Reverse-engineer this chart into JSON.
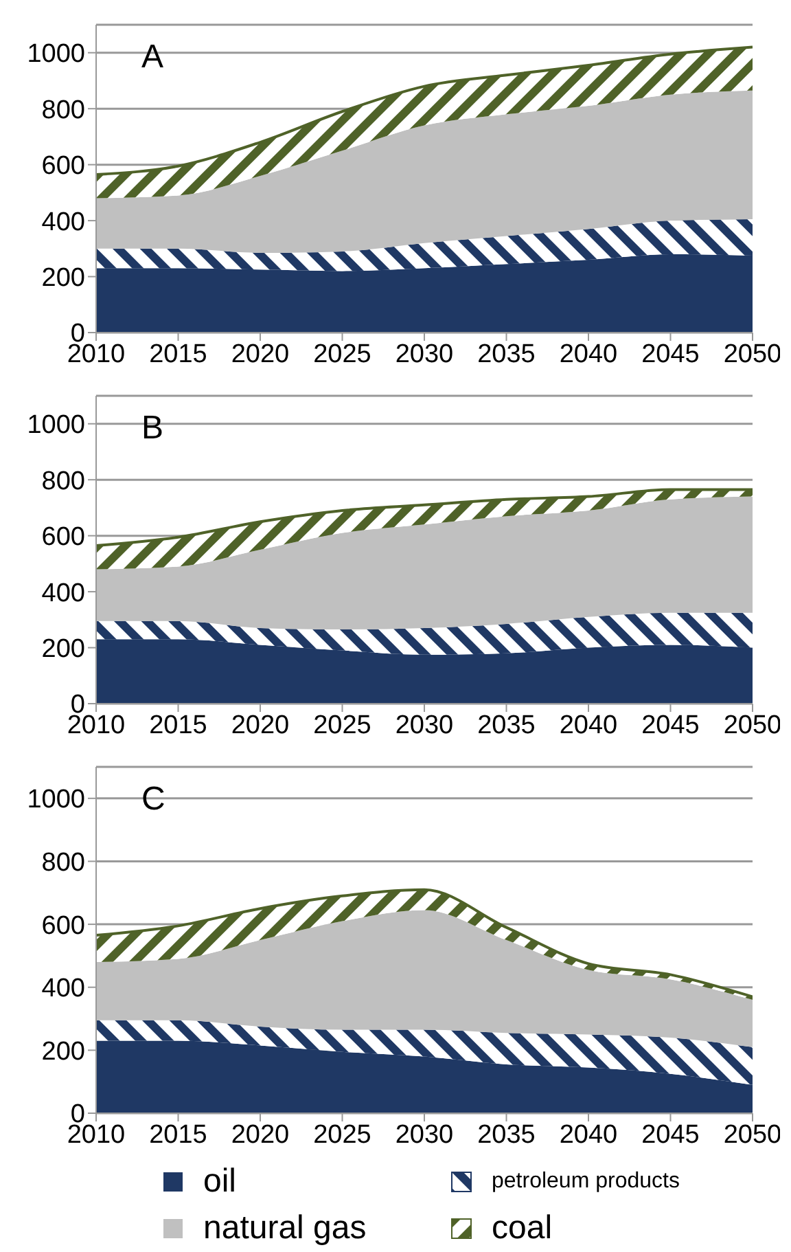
{
  "chart_data": [
    {
      "type": "area",
      "stacked": true,
      "annotations": [
        "A"
      ],
      "x": [
        2010,
        2015,
        2020,
        2025,
        2030,
        2035,
        2040,
        2045,
        2050
      ],
      "xlim": [
        2010,
        2050
      ],
      "xticks": [
        2010,
        2015,
        2020,
        2025,
        2030,
        2035,
        2040,
        2045,
        2050
      ],
      "ylim": [
        0,
        1100
      ],
      "yticks": [
        0,
        200,
        400,
        600,
        800,
        1000
      ],
      "grid": "y",
      "legend": false,
      "series": [
        {
          "color": "#1f3864",
          "values": [
            230,
            230,
            225,
            220,
            230,
            245,
            260,
            280,
            275
          ]
        },
        {
          "color": "#1f3864",
          "values": [
            70,
            70,
            60,
            70,
            90,
            100,
            110,
            120,
            130
          ]
        },
        {
          "color": "#c0c0c0",
          "values": [
            180,
            190,
            275,
            360,
            420,
            435,
            440,
            450,
            460
          ]
        },
        {
          "color": "#4f6228",
          "values": [
            85,
            105,
            120,
            140,
            140,
            140,
            145,
            145,
            155
          ]
        }
      ]
    },
    {
      "type": "area",
      "stacked": true,
      "annotations": [
        "B"
      ],
      "x": [
        2010,
        2015,
        2020,
        2025,
        2030,
        2035,
        2040,
        2045,
        2050
      ],
      "xlim": [
        2010,
        2050
      ],
      "xticks": [
        2010,
        2015,
        2020,
        2025,
        2030,
        2035,
        2040,
        2045,
        2050
      ],
      "ylim": [
        0,
        1100
      ],
      "yticks": [
        0,
        200,
        400,
        600,
        800,
        1000
      ],
      "grid": "y",
      "legend": false,
      "series": [
        {
          "color": "#1f3864",
          "values": [
            230,
            230,
            210,
            190,
            175,
            180,
            200,
            210,
            200
          ]
        },
        {
          "color": "#1f3864",
          "values": [
            65,
            65,
            60,
            75,
            95,
            105,
            110,
            115,
            125
          ]
        },
        {
          "color": "#c0c0c0",
          "values": [
            185,
            195,
            280,
            345,
            370,
            385,
            380,
            405,
            415
          ]
        },
        {
          "color": "#4f6228",
          "values": [
            85,
            105,
            100,
            80,
            70,
            60,
            50,
            35,
            25
          ]
        }
      ]
    },
    {
      "type": "area",
      "stacked": true,
      "annotations": [
        "C"
      ],
      "x": [
        2010,
        2015,
        2020,
        2025,
        2030,
        2035,
        2040,
        2045,
        2050
      ],
      "xlim": [
        2010,
        2050
      ],
      "xticks": [
        2010,
        2015,
        2020,
        2025,
        2030,
        2035,
        2040,
        2045,
        2050
      ],
      "ylim": [
        0,
        1100
      ],
      "yticks": [
        0,
        200,
        400,
        600,
        800,
        1000
      ],
      "grid": "y",
      "legend": "bottom",
      "series": [
        {
          "name": "oil",
          "color": "#1f3864",
          "values": [
            230,
            230,
            215,
            195,
            180,
            155,
            145,
            125,
            90
          ]
        },
        {
          "name": "petroleum products",
          "color": "#1f3864",
          "values": [
            65,
            65,
            60,
            70,
            85,
            100,
            105,
            115,
            120
          ]
        },
        {
          "name": "natural gas",
          "color": "#c0c0c0",
          "values": [
            185,
            195,
            275,
            345,
            380,
            295,
            205,
            185,
            150
          ]
        },
        {
          "name": "coal",
          "color": "#4f6228",
          "values": [
            85,
            105,
            100,
            80,
            65,
            40,
            20,
            15,
            10
          ]
        }
      ]
    }
  ]
}
